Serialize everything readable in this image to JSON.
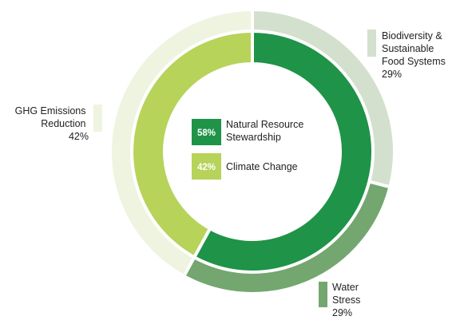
{
  "chart_data": {
    "type": "pie",
    "variant": "nested-donut",
    "inner_ring": {
      "segments": [
        {
          "label": "Natural Resource Stewardship",
          "label_lines": [
            "Natural Resource",
            "Stewardship"
          ],
          "value": 58,
          "value_text": "58%",
          "color": "#1f9347"
        },
        {
          "label": "Climate Change",
          "label_lines": [
            "Climate Change"
          ],
          "value": 42,
          "value_text": "42%",
          "color": "#b7d35a"
        }
      ]
    },
    "outer_ring": {
      "segments": [
        {
          "label": "Biodiversity & Sustainable Food Systems",
          "label_lines": [
            "Biodiversity &",
            "Sustainable",
            "Food Systems"
          ],
          "value": 29,
          "value_text": "29%",
          "color": "#d3e0cd",
          "parent": "Natural Resource Stewardship"
        },
        {
          "label": "Water Stress",
          "label_lines": [
            "Water",
            "Stress"
          ],
          "value": 29,
          "value_text": "29%",
          "color": "#74a66f",
          "parent": "Natural Resource Stewardship"
        },
        {
          "label": "GHG Emissions Reduction",
          "label_lines": [
            "GHG Emissions",
            "Reduction"
          ],
          "value": 42,
          "value_text": "42%",
          "color": "#eef4e0",
          "parent": "Climate Change"
        }
      ]
    },
    "start": "top",
    "direction": "clockwise"
  }
}
